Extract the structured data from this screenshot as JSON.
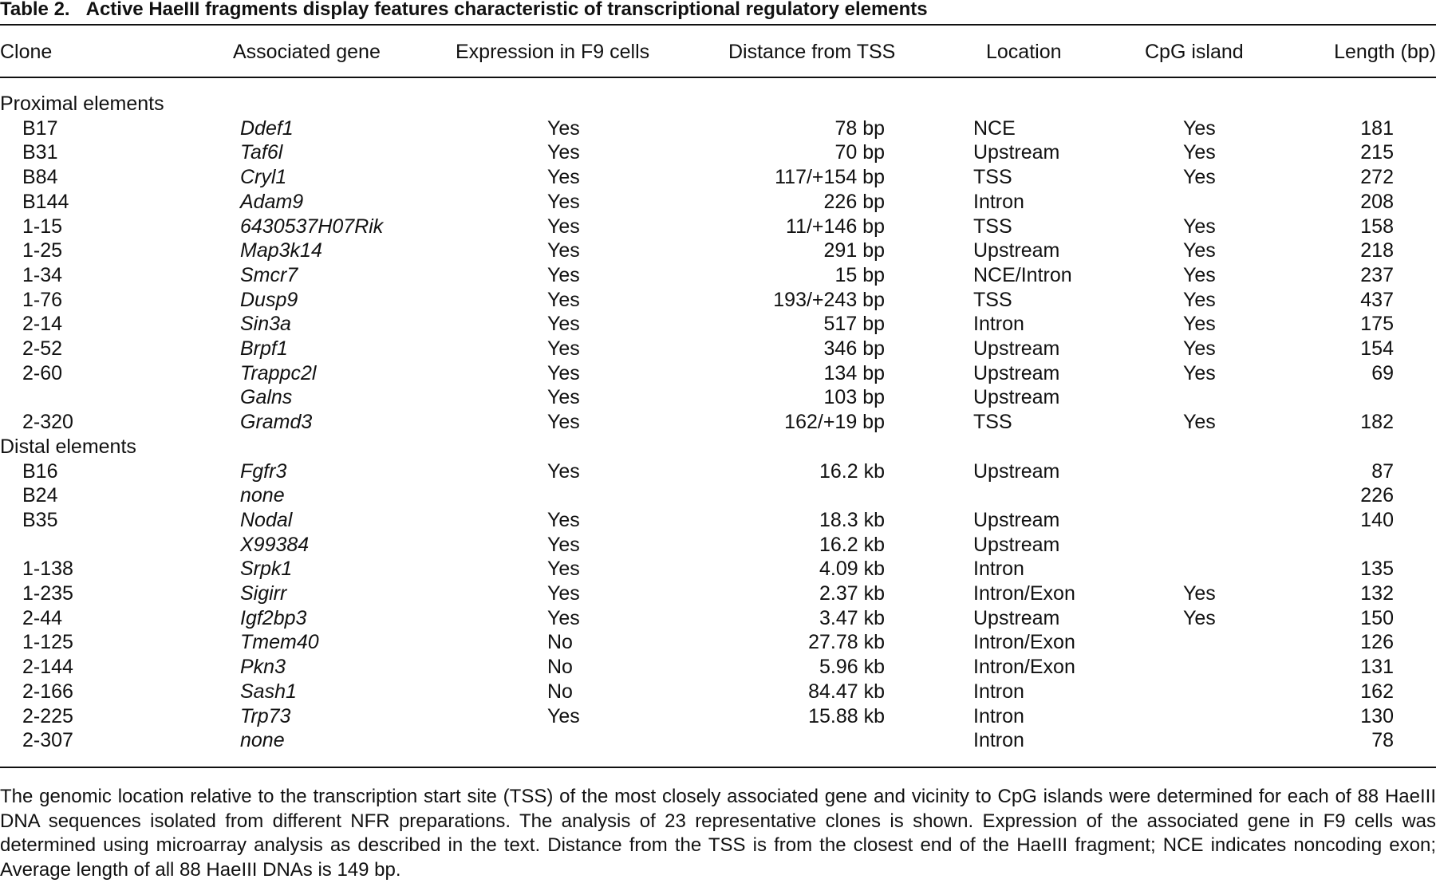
{
  "title_label": "Table 2.",
  "title": "Active HaeIII fragments display features characteristic of transcriptional regulatory elements",
  "table": {
    "columns": [
      "Clone",
      "Associated gene",
      "Expression in F9 cells",
      "Distance from TSS",
      "Location",
      "CpG island",
      "Length (bp)"
    ],
    "sections": [
      {
        "label": "Proximal elements",
        "rows": [
          [
            "B17",
            "Ddef1",
            "Yes",
            "78 bp",
            "NCE",
            "Yes",
            181
          ],
          [
            "B31",
            "Taf6l",
            "Yes",
            "70 bp",
            "Upstream",
            "Yes",
            215
          ],
          [
            "B84",
            "Cryl1",
            "Yes",
            "117/+154 bp",
            "TSS",
            "Yes",
            272
          ],
          [
            "B144",
            "Adam9",
            "Yes",
            "226 bp",
            "Intron",
            null,
            208
          ],
          [
            "1-15",
            "6430537H07Rik",
            "Yes",
            "11/+146 bp",
            "TSS",
            "Yes",
            158
          ],
          [
            "1-25",
            "Map3k14",
            "Yes",
            "291 bp",
            "Upstream",
            "Yes",
            218
          ],
          [
            "1-34",
            "Smcr7",
            "Yes",
            "15 bp",
            "NCE/Intron",
            "Yes",
            237
          ],
          [
            "1-76",
            "Dusp9",
            "Yes",
            "193/+243 bp",
            "TSS",
            "Yes",
            437
          ],
          [
            "2-14",
            "Sin3a",
            "Yes",
            "517 bp",
            "Intron",
            "Yes",
            175
          ],
          [
            "2-52",
            "Brpf1",
            "Yes",
            "346 bp",
            "Upstream",
            "Yes",
            154
          ],
          [
            "2-60",
            "Trappc2l",
            "Yes",
            "134 bp",
            "Upstream",
            "Yes",
            69
          ],
          [
            null,
            "Galns",
            "Yes",
            "103 bp",
            "Upstream",
            null,
            null
          ],
          [
            "2-320",
            "Gramd3",
            "Yes",
            "162/+19 bp",
            "TSS",
            "Yes",
            182
          ]
        ]
      },
      {
        "label": "Distal elements",
        "rows": [
          [
            "B16",
            "Fgfr3",
            "Yes",
            "16.2 kb",
            "Upstream",
            null,
            87
          ],
          [
            "B24",
            "none",
            null,
            null,
            null,
            null,
            226
          ],
          [
            "B35",
            "Nodal",
            "Yes",
            "18.3 kb",
            "Upstream",
            null,
            140
          ],
          [
            null,
            "X99384",
            "Yes",
            "16.2 kb",
            "Upstream",
            null,
            null
          ],
          [
            "1-138",
            "Srpk1",
            "Yes",
            "4.09 kb",
            "Intron",
            null,
            135
          ],
          [
            "1-235",
            "Sigirr",
            "Yes",
            "2.37 kb",
            "Intron/Exon",
            "Yes",
            132
          ],
          [
            "2-44",
            "Igf2bp3",
            "Yes",
            "3.47 kb",
            "Upstream",
            "Yes",
            150
          ],
          [
            "1-125",
            "Tmem40",
            "No",
            "27.78 kb",
            "Intron/Exon",
            null,
            126
          ],
          [
            "2-144",
            "Pkn3",
            "No",
            "5.96 kb",
            "Intron/Exon",
            null,
            131
          ],
          [
            "2-166",
            "Sash1",
            "No",
            "84.47 kb",
            "Intron",
            null,
            162
          ],
          [
            "2-225",
            "Trp73",
            "Yes",
            "15.88 kb",
            "Intron",
            null,
            130
          ],
          [
            "2-307",
            "none",
            null,
            null,
            "Intron",
            null,
            78
          ]
        ]
      }
    ]
  },
  "footnote": "The genomic location relative to the transcription start site (TSS) of the most closely associated gene and vicinity to CpG islands were determined for each of 88 HaeIII DNA sequences isolated from different NFR preparations. The analysis of 23 representative clones is shown. Expression of the associated gene in F9 cells was determined using microarray analysis as described in the text. Distance from the TSS is from the closest end of the HaeIII fragment; NCE indicates noncoding exon; Average length of all 88 HaeIII DNAs is 149 bp."
}
